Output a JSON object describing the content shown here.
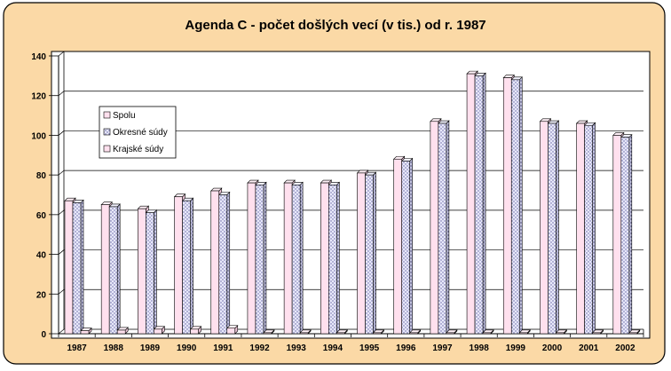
{
  "colors": {
    "frame_background": "#fbd9a6",
    "frame_border": "#000000",
    "plot_background": "#ffffff",
    "bar_spolu": "#ffe0ee",
    "bar_okresne": "#e6e6fb",
    "bar_krajske": "#ffe0ee"
  },
  "chart_data": {
    "type": "bar",
    "style": "3d-clustered",
    "title": "Agenda C - počet došlých vecí (v tis.) od r. 1987",
    "xlabel": "",
    "ylabel": "",
    "ylim": [
      0,
      140
    ],
    "yticks": [
      "0",
      "20",
      "40",
      "60",
      "80",
      "100",
      "120",
      "140"
    ],
    "grid": true,
    "legend_position": "left",
    "categories": [
      "1987",
      "1988",
      "1989",
      "1990",
      "1991",
      "1992",
      "1993",
      "1994",
      "1995",
      "1996",
      "1997",
      "1998",
      "1999",
      "2000",
      "2001",
      "2002"
    ],
    "series": [
      {
        "name": "Spolu",
        "values": [
          67,
          65,
          63,
          69,
          72,
          76,
          76,
          76,
          81,
          88,
          107,
          131,
          129,
          107,
          106,
          100
        ]
      },
      {
        "name": "Okresné súdy",
        "values": [
          66,
          64,
          61,
          67,
          70,
          75,
          75,
          75,
          80,
          87,
          106,
          130,
          128,
          106,
          105,
          99
        ]
      },
      {
        "name": "Krajské súdy",
        "values": [
          1.5,
          1.8,
          2.3,
          2.3,
          2.8,
          0.5,
          0.5,
          0.5,
          0.5,
          0.5,
          0.5,
          0.5,
          0.5,
          0.5,
          0.5,
          0.5
        ]
      }
    ]
  }
}
